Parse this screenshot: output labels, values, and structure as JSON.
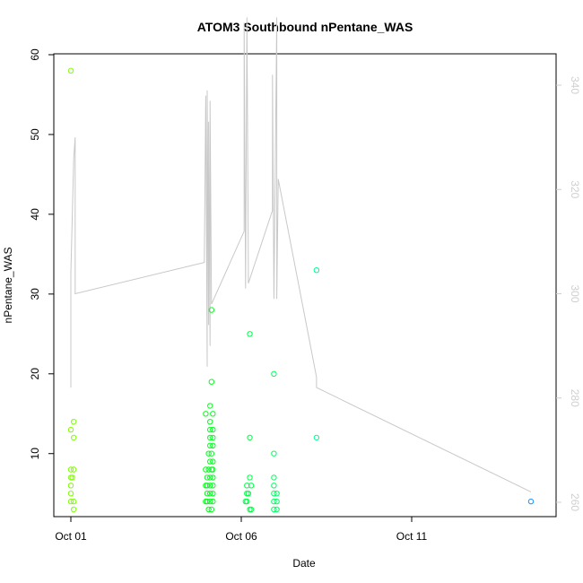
{
  "chart_data": {
    "type": "scatter",
    "title": "ATOM3 Southbound nPentane_WAS",
    "xlabel": "Date",
    "ylabel": "nPentane_WAS",
    "x_axis": {
      "type": "date",
      "range": [
        "2016-10-01",
        "2016-10-15"
      ],
      "ticks": [
        "2016-10-01",
        "2016-10-06",
        "2016-10-11"
      ],
      "tick_labels": [
        "Oct 01",
        "Oct 06",
        "Oct 11"
      ]
    },
    "ylim": [
      3,
      60
    ],
    "yticks": [
      10,
      20,
      30,
      40,
      50,
      60
    ],
    "y2lim": [
      260,
      353
    ],
    "y2ticks": [
      260,
      280,
      300,
      320,
      340
    ],
    "grid": false,
    "colors": {
      "points_ramp": [
        "#7fff00",
        "#00ff00",
        "#00ff7f",
        "#00ffff",
        "#1e90ff"
      ],
      "line": "#c8c8c8",
      "right_axis": "#cfcfcf"
    },
    "series": [
      {
        "kind": "points",
        "axis": "left",
        "points": [
          {
            "x": "2016-10-01T00:00",
            "y": 58
          },
          {
            "x": "2016-10-01T02:00",
            "y": 14
          },
          {
            "x": "2016-10-01T00:00",
            "y": 13
          },
          {
            "x": "2016-10-01T02:00",
            "y": 12
          },
          {
            "x": "2016-10-01T00:00",
            "y": 8
          },
          {
            "x": "2016-10-01T02:00",
            "y": 8
          },
          {
            "x": "2016-10-01T00:00",
            "y": 7
          },
          {
            "x": "2016-10-01T01:00",
            "y": 7
          },
          {
            "x": "2016-10-01T00:00",
            "y": 6
          },
          {
            "x": "2016-10-01T00:00",
            "y": 5
          },
          {
            "x": "2016-10-01T00:00",
            "y": 4
          },
          {
            "x": "2016-10-01T02:00",
            "y": 4
          },
          {
            "x": "2016-10-01T02:00",
            "y": 3
          },
          {
            "x": "2016-10-04T23:00",
            "y": 15
          },
          {
            "x": "2016-10-05T04:00",
            "y": 15
          },
          {
            "x": "2016-10-05T02:00",
            "y": 16
          },
          {
            "x": "2016-10-05T03:00",
            "y": 28
          },
          {
            "x": "2016-10-05T03:00",
            "y": 19
          },
          {
            "x": "2016-10-05T02:00",
            "y": 14
          },
          {
            "x": "2016-10-05T04:00",
            "y": 13
          },
          {
            "x": "2016-10-05T02:00",
            "y": 13
          },
          {
            "x": "2016-10-05T02:00",
            "y": 12
          },
          {
            "x": "2016-10-05T04:00",
            "y": 12
          },
          {
            "x": "2016-10-05T02:00",
            "y": 11
          },
          {
            "x": "2016-10-05T04:00",
            "y": 11
          },
          {
            "x": "2016-10-05T01:00",
            "y": 10
          },
          {
            "x": "2016-10-05T03:00",
            "y": 10
          },
          {
            "x": "2016-10-05T02:00",
            "y": 9
          },
          {
            "x": "2016-10-05T04:00",
            "y": 9
          },
          {
            "x": "2016-10-04T23:00",
            "y": 8
          },
          {
            "x": "2016-10-05T01:00",
            "y": 8
          },
          {
            "x": "2016-10-05T03:00",
            "y": 8
          },
          {
            "x": "2016-10-05T04:00",
            "y": 8
          },
          {
            "x": "2016-10-05T00:00",
            "y": 7
          },
          {
            "x": "2016-10-05T02:00",
            "y": 7
          },
          {
            "x": "2016-10-05T04:00",
            "y": 7
          },
          {
            "x": "2016-10-04T23:00",
            "y": 6
          },
          {
            "x": "2016-10-05T00:00",
            "y": 6
          },
          {
            "x": "2016-10-05T02:00",
            "y": 6
          },
          {
            "x": "2016-10-05T04:00",
            "y": 6
          },
          {
            "x": "2016-10-05T00:00",
            "y": 5
          },
          {
            "x": "2016-10-05T02:00",
            "y": 5
          },
          {
            "x": "2016-10-05T04:00",
            "y": 5
          },
          {
            "x": "2016-10-04T23:00",
            "y": 4
          },
          {
            "x": "2016-10-05T00:00",
            "y": 4
          },
          {
            "x": "2016-10-05T02:00",
            "y": 4
          },
          {
            "x": "2016-10-05T04:00",
            "y": 4
          },
          {
            "x": "2016-10-05T01:00",
            "y": 3
          },
          {
            "x": "2016-10-05T03:00",
            "y": 3
          },
          {
            "x": "2016-10-06T06:00",
            "y": 25
          },
          {
            "x": "2016-10-06T06:00",
            "y": 12
          },
          {
            "x": "2016-10-06T06:00",
            "y": 7
          },
          {
            "x": "2016-10-06T04:00",
            "y": 6
          },
          {
            "x": "2016-10-06T07:00",
            "y": 6
          },
          {
            "x": "2016-10-06T04:00",
            "y": 5
          },
          {
            "x": "2016-10-06T05:00",
            "y": 5
          },
          {
            "x": "2016-10-06T03:00",
            "y": 4
          },
          {
            "x": "2016-10-06T04:00",
            "y": 4
          },
          {
            "x": "2016-10-06T06:00",
            "y": 3
          },
          {
            "x": "2016-10-06T07:00",
            "y": 3
          },
          {
            "x": "2016-10-06T23:00",
            "y": 20
          },
          {
            "x": "2016-10-06T23:00",
            "y": 10
          },
          {
            "x": "2016-10-06T23:00",
            "y": 7
          },
          {
            "x": "2016-10-06T23:00",
            "y": 6
          },
          {
            "x": "2016-10-06T23:00",
            "y": 5
          },
          {
            "x": "2016-10-07T01:00",
            "y": 5
          },
          {
            "x": "2016-10-06T23:00",
            "y": 4
          },
          {
            "x": "2016-10-07T01:00",
            "y": 4
          },
          {
            "x": "2016-10-06T23:00",
            "y": 3
          },
          {
            "x": "2016-10-07T01:00",
            "y": 3
          },
          {
            "x": "2016-10-08T05:00",
            "y": 33
          },
          {
            "x": "2016-10-08T05:00",
            "y": 12
          },
          {
            "x": "2016-10-14T12:00",
            "y": 4
          }
        ]
      },
      {
        "kind": "line",
        "axis": "right",
        "points": [
          {
            "x": "2016-10-01T00:00",
            "y": 282
          },
          {
            "x": "2016-10-01T00:00",
            "y": 304
          },
          {
            "x": "2016-10-01T02:00",
            "y": 326
          },
          {
            "x": "2016-10-01T03:00",
            "y": 330
          },
          {
            "x": "2016-10-01T03:00",
            "y": 300
          },
          {
            "x": "2016-10-04T22:00",
            "y": 306
          },
          {
            "x": "2016-10-04T23:00",
            "y": 338
          },
          {
            "x": "2016-10-05T00:00",
            "y": 286
          },
          {
            "x": "2016-10-05T00:00",
            "y": 339
          },
          {
            "x": "2016-10-05T01:00",
            "y": 294
          },
          {
            "x": "2016-10-05T01:00",
            "y": 333
          },
          {
            "x": "2016-10-05T02:00",
            "y": 290
          },
          {
            "x": "2016-10-05T02:00",
            "y": 337
          },
          {
            "x": "2016-10-05T03:00",
            "y": 298
          },
          {
            "x": "2016-10-05T03:00",
            "y": 298
          },
          {
            "x": "2016-10-06T02:00",
            "y": 312
          },
          {
            "x": "2016-10-06T02:00",
            "y": 352
          },
          {
            "x": "2016-10-06T03:00",
            "y": 301
          },
          {
            "x": "2016-10-06T04:00",
            "y": 353
          },
          {
            "x": "2016-10-06T05:00",
            "y": 305
          },
          {
            "x": "2016-10-06T05:00",
            "y": 302
          },
          {
            "x": "2016-10-06T22:00",
            "y": 316
          },
          {
            "x": "2016-10-06T22:00",
            "y": 342
          },
          {
            "x": "2016-10-06T23:00",
            "y": 299
          },
          {
            "x": "2016-10-07T01:00",
            "y": 353
          },
          {
            "x": "2016-10-07T01:00",
            "y": 299
          },
          {
            "x": "2016-10-07T02:00",
            "y": 322
          },
          {
            "x": "2016-10-08T05:00",
            "y": 284
          },
          {
            "x": "2016-10-08T05:00",
            "y": 282
          },
          {
            "x": "2016-10-14T12:00",
            "y": 262
          }
        ]
      }
    ]
  }
}
